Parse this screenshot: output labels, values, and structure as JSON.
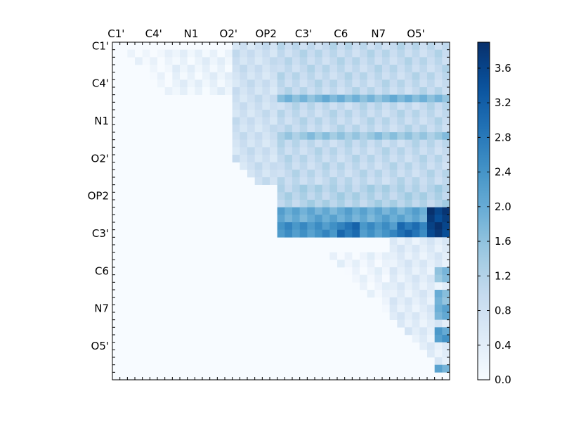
{
  "chart_data": {
    "type": "heatmap",
    "title": "",
    "xlabel": "",
    "ylabel": "",
    "n": 45,
    "row_tick_labels": [
      "C1'",
      "C4'",
      "N1",
      "O2'",
      "OP2",
      "C3'",
      "C6",
      "N7",
      "O5'"
    ],
    "col_tick_labels": [
      "C1'",
      "C4'",
      "N1",
      "O2'",
      "OP2",
      "C3'",
      "C6",
      "N7",
      "O5'"
    ],
    "label_positions_index": [
      0,
      5,
      10,
      15,
      20,
      25,
      30,
      35,
      40
    ],
    "colormap": "Blues",
    "colorbar": {
      "vmin": 0.0,
      "vmax": 3.9,
      "ticks": [
        "0.0",
        "0.4",
        "0.8",
        "1.2",
        "1.6",
        "2.0",
        "2.4",
        "2.8",
        "3.2",
        "3.6"
      ],
      "tick_values": [
        0.0,
        0.4,
        0.8,
        1.2,
        1.6,
        2.0,
        2.4,
        2.8,
        3.2,
        3.6
      ]
    },
    "regions": [
      {
        "rows": [
          1,
          7
        ],
        "cols": [
          1,
          8
        ],
        "value": 0.12,
        "upper_only": true
      },
      {
        "rows": [
          1,
          7
        ],
        "cols": [
          8,
          18
        ],
        "value": 0.25,
        "upper_only": true
      },
      {
        "rows": [
          0,
          19
        ],
        "cols": [
          16,
          22
        ],
        "value": 0.8,
        "upper_only": true
      },
      {
        "rows": [
          0,
          19
        ],
        "cols": [
          22,
          45
        ],
        "value": 1.0,
        "upper_only": true
      },
      {
        "rows": [
          7,
          8
        ],
        "cols": [
          22,
          45
        ],
        "value": 1.8
      },
      {
        "rows": [
          12,
          13
        ],
        "cols": [
          22,
          45
        ],
        "value": 1.5
      },
      {
        "rows": [
          19,
          22
        ],
        "cols": [
          22,
          45
        ],
        "value": 1.2
      },
      {
        "rows": [
          22,
          24
        ],
        "cols": [
          22,
          45
        ],
        "value": 2.0
      },
      {
        "rows": [
          24,
          26
        ],
        "cols": [
          22,
          45
        ],
        "value": 2.4
      },
      {
        "rows": [
          24,
          26
        ],
        "cols": [
          30,
          33
        ],
        "value": 2.9
      },
      {
        "rows": [
          24,
          26
        ],
        "cols": [
          38,
          41
        ],
        "value": 3.0
      },
      {
        "rows": [
          22,
          26
        ],
        "cols": [
          42,
          45
        ],
        "value": 3.7
      },
      {
        "rows": [
          26,
          45
        ],
        "cols": [
          37,
          45
        ],
        "value": 0.45,
        "upper_only": true
      },
      {
        "rows": [
          28,
          36
        ],
        "cols": [
          26,
          37
        ],
        "value": 0.2,
        "upper_only": true
      },
      {
        "rows": [
          30,
          32
        ],
        "cols": [
          43,
          45
        ],
        "value": 1.6
      },
      {
        "rows": [
          33,
          35
        ],
        "cols": [
          43,
          45
        ],
        "value": 1.8
      },
      {
        "rows": [
          35,
          37
        ],
        "cols": [
          43,
          45
        ],
        "value": 2.0
      },
      {
        "rows": [
          38,
          40
        ],
        "cols": [
          43,
          45
        ],
        "value": 2.2
      },
      {
        "rows": [
          43,
          44
        ],
        "cols": [
          43,
          45
        ],
        "value": 2.1
      }
    ]
  }
}
